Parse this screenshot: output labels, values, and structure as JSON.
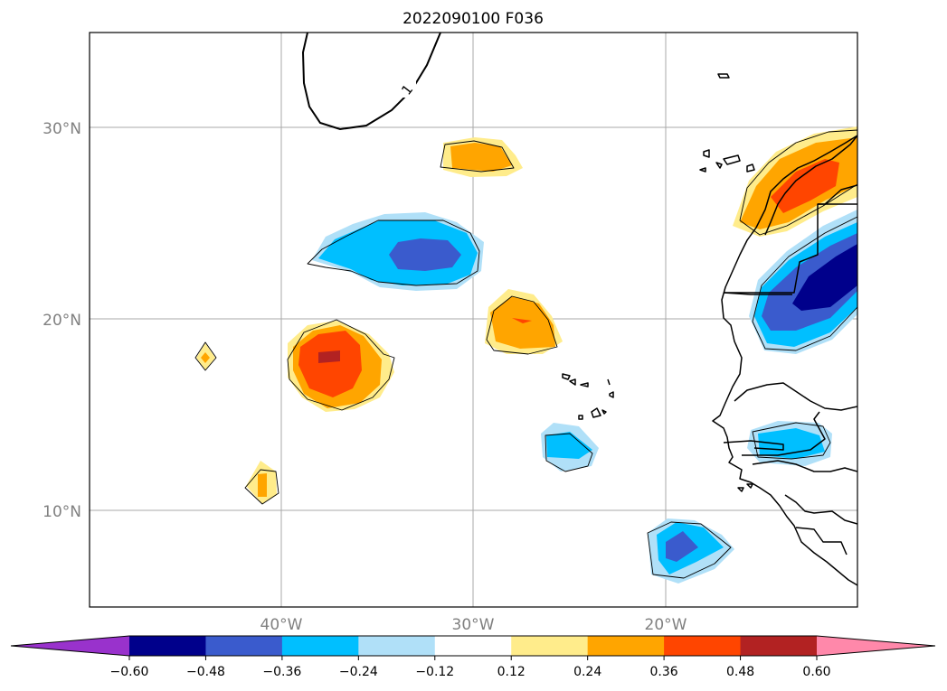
{
  "title": "2022090100 F036",
  "lat_labels": [
    "30°N",
    "20°N",
    "10°N"
  ],
  "lon_labels": [
    "40°W",
    "30°W",
    "20°W"
  ],
  "contour_label": "1",
  "colorbar": {
    "ticks": [
      "−0.60",
      "−0.48",
      "−0.36",
      "−0.24",
      "−0.12",
      "0.12",
      "0.24",
      "0.36",
      "0.48",
      "0.60"
    ],
    "colors": [
      "#9932cc",
      "#00008b",
      "#3a5bcd",
      "#00bfff",
      "#b0e0f8",
      "#ffffff",
      "#ffec8b",
      "#ffa500",
      "#ff4500",
      "#b22222",
      "#ff88aa"
    ],
    "extend": "both"
  },
  "map_extent": {
    "lon_min": -50,
    "lon_max": -10,
    "lat_min": 5,
    "lat_max": 35
  },
  "gridlines": {
    "lons": [
      -40,
      -30,
      -20
    ],
    "lats": [
      10,
      20,
      30
    ]
  }
}
